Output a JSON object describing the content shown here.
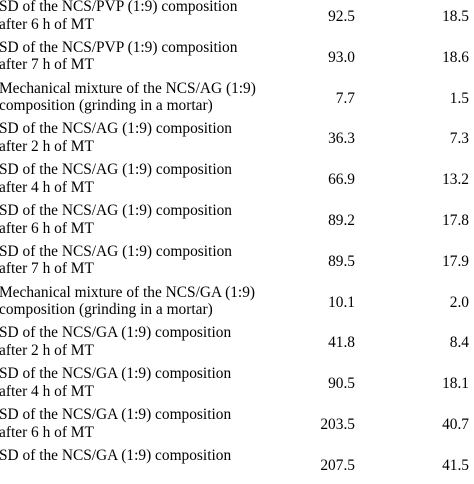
{
  "rows": [
    {
      "line1": "SD of the NCS/PVP (1:9) composition",
      "line2": "after 6 h of MT",
      "value1": "92.5",
      "value2": "18.5"
    },
    {
      "line1": "SD of the NCS/PVP (1:9) composition",
      "line2": "after 7 h of MT",
      "value1": "93.0",
      "value2": "18.6"
    },
    {
      "line1": "Mechanical mixture of the NCS/AG (1:9)",
      "line2": "composition (grinding in a mortar)",
      "value1": "7.7",
      "value2": "1.5"
    },
    {
      "line1": "SD of the NCS/AG (1:9) composition",
      "line2": "after 2 h of MT",
      "value1": "36.3",
      "value2": "7.3"
    },
    {
      "line1": "SD of the NCS/AG (1:9) composition",
      "line2": "after 4 h of MT",
      "value1": "66.9",
      "value2": "13.2"
    },
    {
      "line1": "SD of the NCS/AG (1:9) composition",
      "line2": "after 6 h of MT",
      "value1": "89.2",
      "value2": "17.8"
    },
    {
      "line1": "SD of the NCS/AG (1:9) composition",
      "line2": "after 7 h of MT",
      "value1": "89.5",
      "value2": "17.9"
    },
    {
      "line1": "Mechanical mixture of the NCS/GA (1:9)",
      "line2": "composition (grinding in a mortar)",
      "value1": "10.1",
      "value2": "2.0"
    },
    {
      "line1": "SD of the NCS/GA (1:9) composition",
      "line2": "after 2 h of MT",
      "value1": "41.8",
      "value2": "8.4"
    },
    {
      "line1": "SD of the NCS/GA (1:9) composition",
      "line2": "after 4 h of MT",
      "value1": "90.5",
      "value2": "18.1"
    },
    {
      "line1": "SD of the NCS/GA (1:9) composition",
      "line2": "after 6 h of MT",
      "value1": "203.5",
      "value2": "40.7"
    },
    {
      "line1": "SD of the NCS/GA (1:9) composition",
      "line2": "",
      "value1": "207.5",
      "value2": "41.5"
    }
  ]
}
